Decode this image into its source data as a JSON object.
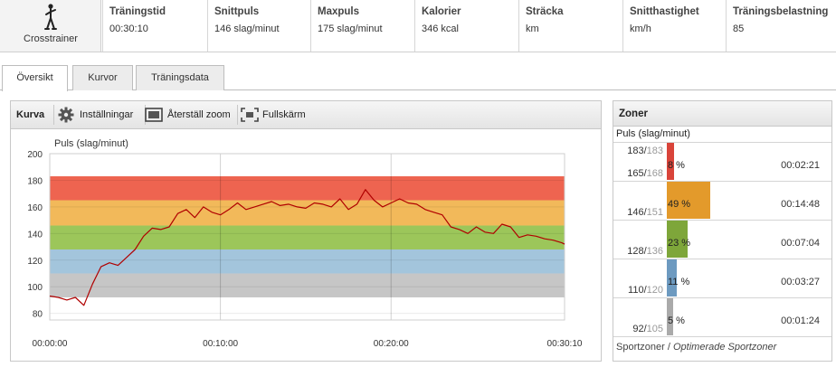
{
  "sport": {
    "label": "Crosstrainer",
    "icon": "crosstrainer-icon"
  },
  "stats": [
    {
      "header": "Träningstid",
      "value": "00:30:10"
    },
    {
      "header": "Snittpuls",
      "value": "146  slag/minut"
    },
    {
      "header": "Maxpuls",
      "value": "175  slag/minut"
    },
    {
      "header": "Kalorier",
      "value": "346  kcal"
    },
    {
      "header": "Sträcka",
      "value": " km"
    },
    {
      "header": "Snitthastighet",
      "value": " km/h"
    },
    {
      "header": "Träningsbelastning",
      "value": "85"
    }
  ],
  "tabs": [
    {
      "label": "Översikt",
      "active": true
    },
    {
      "label": "Kurvor",
      "active": false
    },
    {
      "label": "Träningsdata",
      "active": false
    }
  ],
  "toolbar": {
    "curve_label": "Kurva",
    "settings_label": "Inställningar",
    "reset_zoom_label": "Återställ zoom",
    "fullscreen_label": "Fullskärm"
  },
  "chart_data": {
    "type": "line",
    "ylabel": "Puls (slag/minut)",
    "ylim": [
      75,
      200
    ],
    "yticks": [
      80,
      100,
      120,
      140,
      160,
      180,
      200
    ],
    "xlim": [
      "00:00:00",
      "00:30:10"
    ],
    "xticks": [
      "00:00:00",
      "00:10:00",
      "00:20:00",
      "00:30:10"
    ],
    "grid": true,
    "zone_bands": [
      {
        "from": 92,
        "to": 110,
        "color": "#c6c6c6"
      },
      {
        "from": 110,
        "to": 128,
        "color": "#a3c5dc"
      },
      {
        "from": 128,
        "to": 146,
        "color": "#9cc65a"
      },
      {
        "from": 146,
        "to": 165,
        "color": "#f2b95a"
      },
      {
        "from": 165,
        "to": 183,
        "color": "#ee6450"
      }
    ],
    "series": [
      {
        "color": "#b00000",
        "x_seconds": [
          0,
          30,
          60,
          90,
          120,
          150,
          180,
          210,
          240,
          270,
          300,
          330,
          360,
          390,
          420,
          450,
          480,
          510,
          540,
          570,
          600,
          630,
          660,
          690,
          720,
          750,
          780,
          810,
          840,
          870,
          900,
          930,
          960,
          990,
          1020,
          1050,
          1080,
          1110,
          1140,
          1170,
          1200,
          1230,
          1260,
          1290,
          1320,
          1350,
          1380,
          1410,
          1440,
          1470,
          1500,
          1530,
          1560,
          1590,
          1620,
          1650,
          1680,
          1710,
          1740,
          1770,
          1800,
          1810
        ],
        "values": [
          93,
          92,
          90,
          92,
          86,
          102,
          115,
          118,
          116,
          122,
          128,
          138,
          144,
          143,
          145,
          155,
          158,
          152,
          160,
          156,
          154,
          158,
          163,
          158,
          160,
          162,
          164,
          161,
          162,
          160,
          159,
          163,
          162,
          160,
          166,
          158,
          162,
          173,
          165,
          160,
          163,
          166,
          163,
          162,
          158,
          156,
          154,
          145,
          143,
          140,
          145,
          141,
          140,
          147,
          145,
          137,
          139,
          138,
          136,
          135,
          133,
          132
        ]
      }
    ]
  },
  "zones": {
    "title": "Zoner",
    "subtitle": "Puls (slag/minut)",
    "rows": [
      {
        "max": "183",
        "max_pct": "183",
        "min": "165",
        "min_pct": "168",
        "percent": "8 %",
        "fraction": 0.08,
        "time": "00:02:21",
        "color": "#d9443a"
      },
      {
        "max": "",
        "max_pct": "",
        "min": "146",
        "min_pct": "151",
        "percent": "49 %",
        "fraction": 0.49,
        "time": "00:14:48",
        "color": "#e39a2b"
      },
      {
        "max": "",
        "max_pct": "",
        "min": "128",
        "min_pct": "136",
        "percent": "23 %",
        "fraction": 0.23,
        "time": "00:07:04",
        "color": "#7ea63a"
      },
      {
        "max": "",
        "max_pct": "",
        "min": "110",
        "min_pct": "120",
        "percent": "11 %",
        "fraction": 0.11,
        "time": "00:03:27",
        "color": "#6d9ac0"
      },
      {
        "max": "",
        "max_pct": "",
        "min": "92",
        "min_pct": "105",
        "percent": "5 %",
        "fraction": 0.05,
        "time": "00:01:24",
        "color": "#aaaaaa"
      }
    ],
    "footer_a": "Sportzoner",
    "footer_sep": " / ",
    "footer_b": "Optimerade Sportzoner"
  }
}
